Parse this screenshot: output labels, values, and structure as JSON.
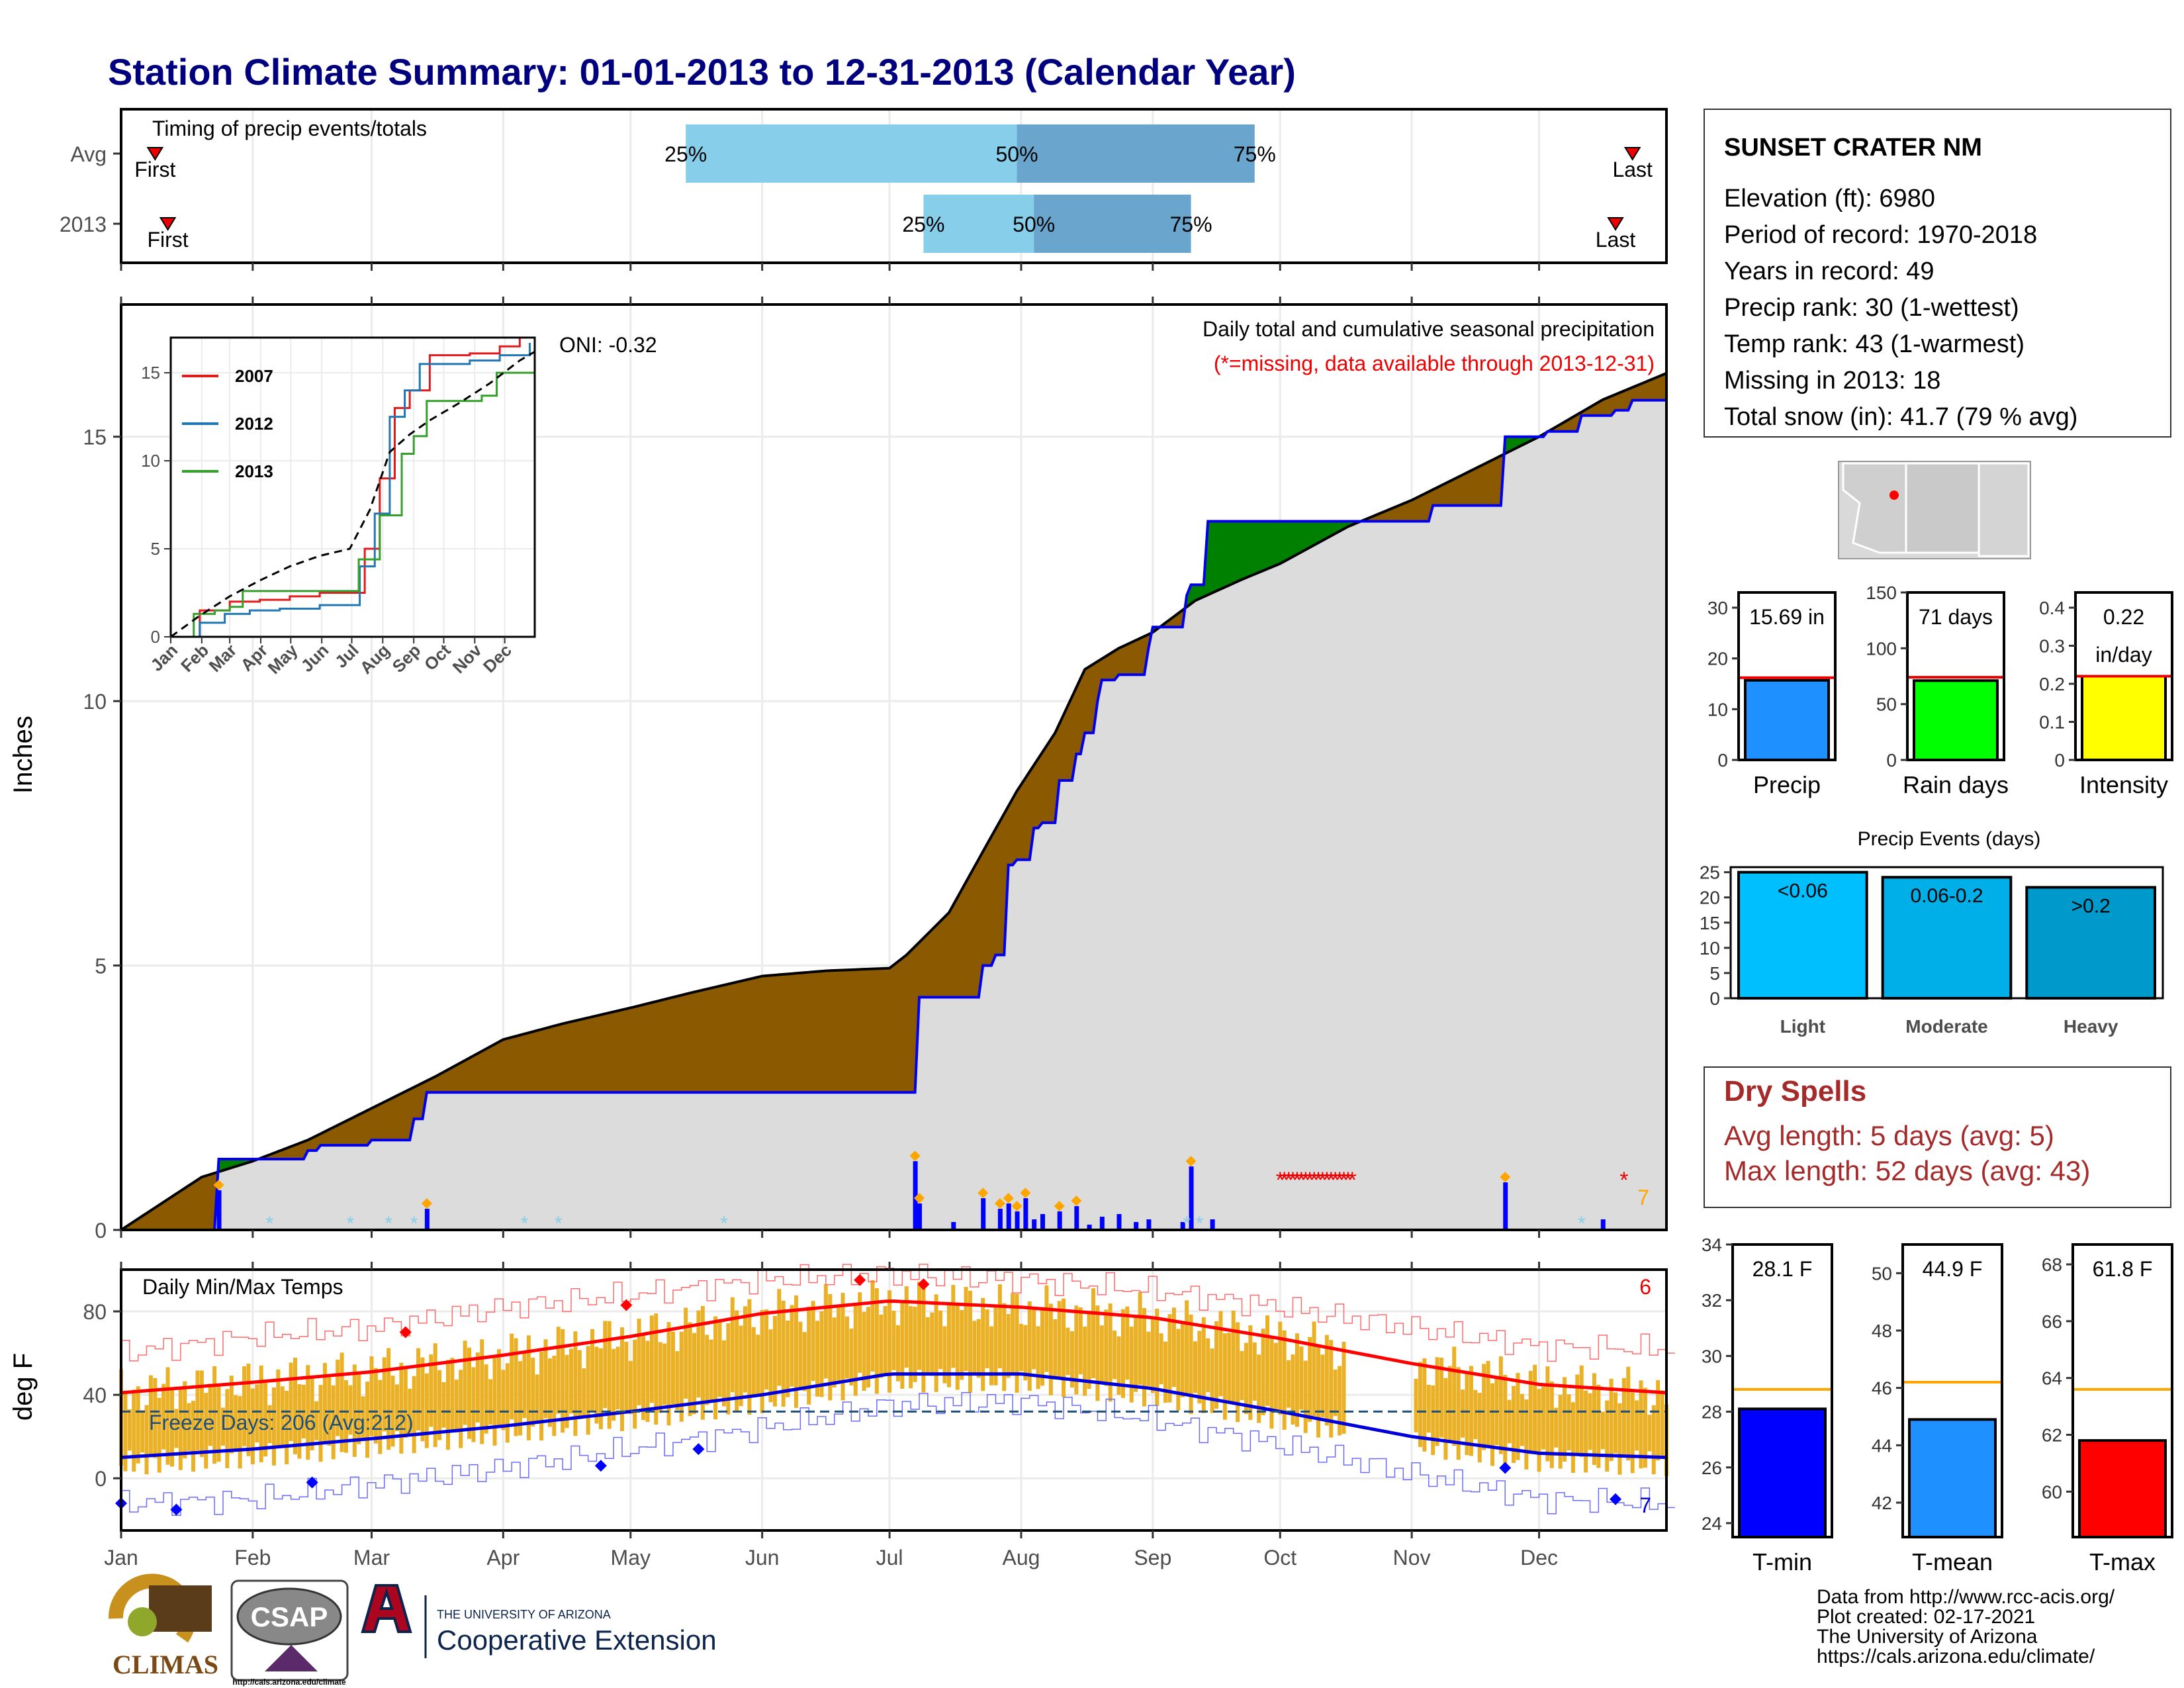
{
  "title": "Station Climate Summary: 01-01-2013 to 12-31-2013 (Calendar Year)",
  "months": [
    "Jan",
    "Feb",
    "Mar",
    "Apr",
    "May",
    "Jun",
    "Jul",
    "Aug",
    "Sep",
    "Oct",
    "Nov",
    "Dec"
  ],
  "timing": {
    "label": "Timing of precip events/totals",
    "rows": [
      {
        "name": "Avg",
        "first_label": "First",
        "last_label": "Last",
        "p25_label": "25%",
        "p50_label": "50%",
        "p75_label": "75%",
        "first_doy": 9,
        "p25_doy": 134,
        "p50_doy": 212,
        "p75_doy": 268,
        "last_doy": 357
      },
      {
        "name": "2013",
        "first_label": "First",
        "last_label": "Last",
        "p25_label": "25%",
        "p50_label": "50%",
        "p75_label": "75%",
        "first_doy": 12,
        "p25_doy": 190,
        "p50_doy": 216,
        "p75_doy": 253,
        "last_doy": 353
      }
    ]
  },
  "precip_panel": {
    "ylabel": "Inches",
    "yticks": [
      0,
      5,
      10,
      15
    ],
    "ylim": [
      0,
      17.5
    ],
    "note1": "Daily total and cumulative seasonal precipitation",
    "note2": "(*=missing, data available through 2013-12-31)",
    "oni": "ONI: -0.32",
    "missing_count": "7"
  },
  "inset": {
    "yticks": [
      0,
      5,
      10,
      15
    ],
    "legend": [
      {
        "name": "2007",
        "color": "#e31a1c"
      },
      {
        "name": "2012",
        "color": "#1f78b4"
      },
      {
        "name": "2013",
        "color": "#33a02c"
      }
    ]
  },
  "temp_panel": {
    "ylabel": "deg F",
    "yticks": [
      0,
      40,
      80
    ],
    "label": "Daily Min/Max Temps",
    "freeze": "Freeze Days: 206 (Avg:212)",
    "count_max": "6",
    "count_min": "7"
  },
  "station": {
    "name": "SUNSET CRATER NM",
    "lines": [
      "Elevation (ft): 6980",
      "Period of record: 1970-2018",
      "Years in record: 49",
      "Precip rank: 30 (1-wettest)",
      "Temp rank: 43 (1-warmest)",
      "Missing in 2013: 18",
      "Total snow (in): 41.7 (79 % avg)"
    ]
  },
  "dry_spells": {
    "title": "Dry Spells",
    "lines": [
      "Avg length: 5 days (avg: 5)",
      "Max length: 52 days (avg: 43)"
    ]
  },
  "footer": [
    "Data from http://www.rcc-acis.org/",
    "Plot created: 02-17-2021",
    "The University of Arizona",
    "https://cals.arizona.edu/climate/"
  ],
  "logos": {
    "climas": "CLIMAS",
    "csap": "CSAP",
    "csap_url": "http://cals.arizona.edu/climate",
    "ua_top": "THE UNIVERSITY OF ARIZONA",
    "ua_bottom": "Cooperative Extension"
  },
  "chart_data": [
    {
      "type": "area",
      "title": "Daily total and cumulative seasonal precipitation",
      "ylabel": "Inches",
      "ylim": [
        0,
        17.5
      ],
      "x_unit": "day of year 2013",
      "series": [
        {
          "name": "avg cumulative",
          "x": [
            1,
            20,
            32,
            45,
            60,
            75,
            91,
            105,
            121,
            136,
            152,
            167,
            182,
            186,
            196,
            205,
            212,
            221,
            228,
            236,
            244,
            254,
            265,
            274,
            290,
            305,
            320,
            335,
            350,
            365
          ],
          "y": [
            0,
            1.0,
            1.3,
            1.7,
            2.3,
            2.9,
            3.6,
            3.9,
            4.2,
            4.5,
            4.8,
            4.9,
            4.95,
            5.2,
            6.0,
            7.3,
            8.3,
            9.4,
            10.6,
            11.0,
            11.3,
            11.9,
            12.3,
            12.6,
            13.3,
            13.8,
            14.4,
            15.0,
            15.7,
            16.2
          ]
        },
        {
          "name": "2013 cumulative",
          "x": [
            1,
            22,
            24,
            36,
            45,
            48,
            60,
            70,
            73,
            120,
            188,
            189,
            197,
            204,
            207,
            210,
            212,
            216,
            218,
            222,
            226,
            228,
            231,
            232,
            236,
            243,
            244,
            252,
            253,
            257,
            310,
            312,
            327,
            337,
            345,
            353,
            357,
            365
          ],
          "y": [
            0,
            0,
            1.34,
            1.34,
            1.5,
            1.6,
            1.7,
            2.1,
            2.6,
            2.6,
            2.6,
            4.4,
            4.4,
            5.0,
            5.2,
            6.9,
            7.0,
            7.6,
            7.7,
            8.5,
            9.0,
            9.4,
            10.0,
            10.4,
            10.5,
            11.0,
            11.4,
            12.0,
            12.2,
            13.4,
            13.7,
            13.7,
            15.0,
            15.1,
            15.4,
            15.5,
            15.69,
            15.69
          ]
        }
      ],
      "daily_bars": {
        "x": [
          24,
          73,
          188,
          189,
          197,
          204,
          208,
          210,
          212,
          214,
          216,
          218,
          222,
          226,
          229,
          232,
          236,
          240,
          243,
          251,
          253,
          258,
          327,
          350
        ],
        "y": [
          0.75,
          0.4,
          1.3,
          0.5,
          0.15,
          0.6,
          0.4,
          0.5,
          0.35,
          0.6,
          0.2,
          0.3,
          0.35,
          0.45,
          0.1,
          0.25,
          0.3,
          0.15,
          0.2,
          0.15,
          1.2,
          0.2,
          0.9,
          0.2
        ]
      },
      "missing_x": [
        274,
        275,
        276,
        277,
        278,
        279,
        280,
        281,
        282,
        283,
        284,
        285,
        286,
        287,
        288,
        289,
        290,
        291,
        355
      ]
    },
    {
      "type": "line",
      "title": "inset cumulative precipitation",
      "ylim": [
        0,
        17
      ],
      "series": [
        {
          "name": "2007",
          "x": [
            1,
            30,
            60,
            90,
            120,
            150,
            180,
            195,
            210,
            225,
            240,
            260,
            300,
            330,
            350,
            358
          ],
          "y": [
            0,
            1.5,
            2,
            2.1,
            2.3,
            2.5,
            2.5,
            5,
            9,
            13,
            14,
            16,
            16.1,
            16.5,
            17,
            17
          ]
        },
        {
          "name": "2012",
          "x": [
            1,
            30,
            55,
            80,
            110,
            150,
            180,
            190,
            205,
            220,
            235,
            250,
            270,
            300,
            330,
            360
          ],
          "y": [
            0,
            0.8,
            1.3,
            1.5,
            1.6,
            1.8,
            1.8,
            4,
            7,
            12.5,
            14,
            15.5,
            15.5,
            15.7,
            16,
            16.7
          ]
        },
        {
          "name": "2013",
          "x": [
            1,
            22,
            24,
            45,
            60,
            73,
            120,
            188,
            189,
            210,
            232,
            244,
            257,
            312,
            327,
            365
          ],
          "y": [
            0,
            0,
            1.3,
            1.5,
            1.7,
            2.6,
            2.6,
            2.6,
            4.4,
            6.9,
            10.4,
            11.4,
            13.4,
            13.7,
            15,
            15.7
          ]
        },
        {
          "name": "avg",
          "x": [
            1,
            30,
            60,
            90,
            120,
            150,
            180,
            200,
            220,
            240,
            260,
            290,
            320,
            350,
            365
          ],
          "y": [
            0,
            1.2,
            2.3,
            3.2,
            4.0,
            4.6,
            5.0,
            7.2,
            10.5,
            11.5,
            12.3,
            13.3,
            14.4,
            15.7,
            16.2
          ]
        }
      ]
    },
    {
      "type": "line",
      "title": "Daily Min/Max Temps",
      "ylabel": "deg F",
      "ylim": [
        -25,
        100
      ],
      "series": [
        {
          "name": "avg max",
          "x": [
            1,
            32,
            60,
            91,
            121,
            152,
            182,
            213,
            244,
            274,
            305,
            335,
            365
          ],
          "y": [
            41,
            46,
            51,
            59,
            68,
            79,
            85,
            82,
            77,
            67,
            55,
            45,
            41
          ]
        },
        {
          "name": "avg min",
          "x": [
            1,
            32,
            60,
            91,
            121,
            152,
            182,
            213,
            244,
            274,
            305,
            335,
            365
          ],
          "y": [
            10,
            14,
            19,
            25,
            32,
            40,
            50,
            50,
            43,
            32,
            20,
            12,
            10
          ]
        },
        {
          "name": "record max",
          "x": [
            1,
            32,
            60,
            91,
            121,
            152,
            182,
            213,
            244,
            274,
            305,
            335,
            365
          ],
          "y": [
            60,
            68,
            72,
            82,
            88,
            95,
            98,
            95,
            90,
            82,
            72,
            63,
            62
          ]
        },
        {
          "name": "record min",
          "x": [
            1,
            32,
            60,
            91,
            121,
            152,
            182,
            213,
            244,
            274,
            305,
            335,
            365
          ],
          "y": [
            -12,
            -10,
            -3,
            5,
            14,
            24,
            35,
            37,
            28,
            16,
            2,
            -10,
            -12
          ]
        },
        {
          "name": "freeze line",
          "x": [
            1,
            365
          ],
          "y": [
            32,
            32
          ]
        }
      ],
      "gap_x": [
        290,
        305
      ]
    },
    {
      "type": "bar",
      "title": "Precip",
      "categories": [
        "Precip"
      ],
      "values": [
        15.69
      ],
      "avg": 16.2,
      "ylim": [
        0,
        33
      ],
      "yticks": [
        0,
        10,
        20,
        30
      ],
      "value_label": "15.69 in",
      "xlabel": "Precip",
      "color": "#1e90ff"
    },
    {
      "type": "bar",
      "title": "Rain days",
      "categories": [
        "Rain days"
      ],
      "values": [
        71
      ],
      "avg": 74,
      "ylim": [
        0,
        150
      ],
      "yticks": [
        0,
        50,
        100,
        150
      ],
      "value_label": "71 days",
      "xlabel": "Rain days",
      "color": "#00ff00"
    },
    {
      "type": "bar",
      "title": "Intensity",
      "categories": [
        "Intensity"
      ],
      "values": [
        0.22
      ],
      "avg": 0.22,
      "ylim": [
        0,
        0.44
      ],
      "yticks": [
        0.0,
        0.1,
        0.2,
        0.3,
        0.4
      ],
      "value_label": "0.22",
      "value_label2": "in/day",
      "xlabel": "Intensity",
      "color": "#ffff00"
    },
    {
      "type": "bar",
      "title": "Precip Events (days)",
      "categories": [
        "Light",
        "Moderate",
        "Heavy"
      ],
      "inner_labels": [
        "<0.06",
        "0.06-0.2",
        ">0.2"
      ],
      "values": [
        25,
        24,
        22
      ],
      "ylim": [
        0,
        26
      ],
      "yticks": [
        0,
        5,
        10,
        15,
        20,
        25
      ],
      "colors": [
        "#00bfff",
        "#00aee8",
        "#0099cc"
      ]
    },
    {
      "type": "bar",
      "title": "T-min",
      "categories": [
        "T-min"
      ],
      "values": [
        28.1
      ],
      "avg": 28.8,
      "ylim": [
        23.5,
        34
      ],
      "yticks": [
        24,
        26,
        28,
        30,
        32,
        34
      ],
      "value_label": "28.1 F",
      "xlabel": "T-min",
      "color": "#0000ff"
    },
    {
      "type": "bar",
      "title": "T-mean",
      "categories": [
        "T-mean"
      ],
      "values": [
        44.9
      ],
      "avg": 46.2,
      "ylim": [
        40.8,
        51
      ],
      "yticks": [
        42,
        44,
        46,
        48,
        50
      ],
      "value_label": "44.9 F",
      "xlabel": "T-mean",
      "color": "#1e90ff"
    },
    {
      "type": "bar",
      "title": "T-max",
      "categories": [
        "T-max"
      ],
      "values": [
        61.8
      ],
      "avg": 63.6,
      "ylim": [
        58.4,
        68.7
      ],
      "yticks": [
        60,
        62,
        64,
        66,
        68
      ],
      "value_label": "61.8 F",
      "xlabel": "T-max",
      "color": "#ff0000"
    }
  ]
}
